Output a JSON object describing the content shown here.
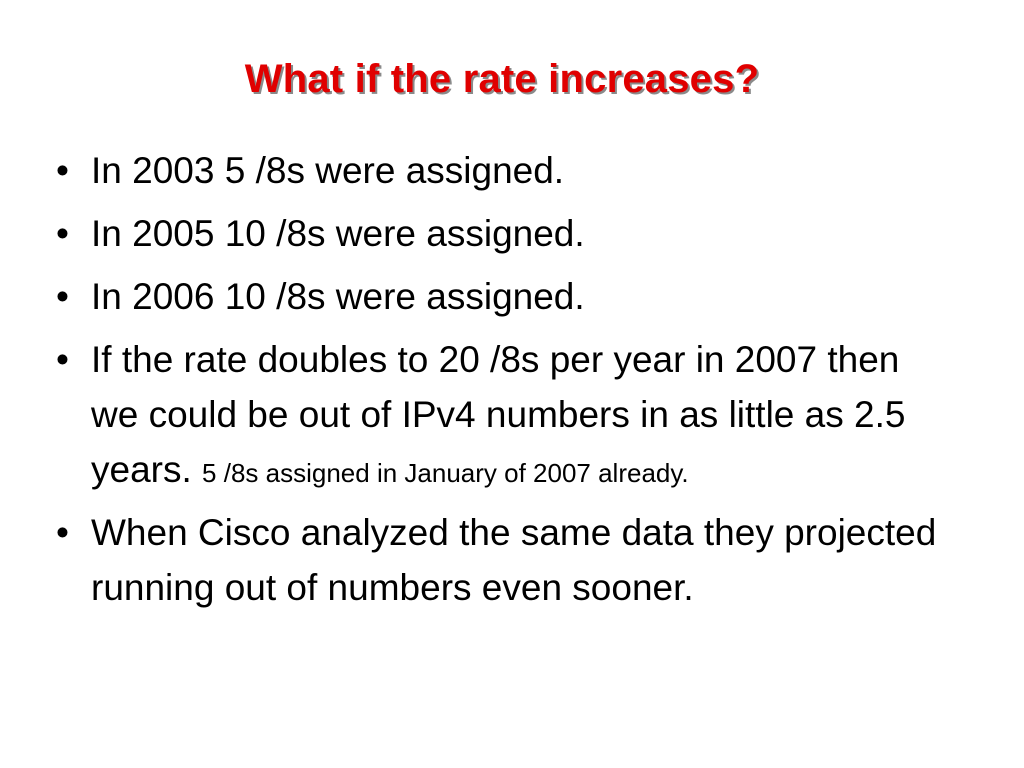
{
  "slide": {
    "title": "What if the rate increases?",
    "bullet_char": "•",
    "bullets": [
      {
        "text": "In 2003 5 /8s were assigned."
      },
      {
        "text": "In 2005 10 /8s were assigned."
      },
      {
        "text": "In 2006 10 /8s were assigned."
      },
      {
        "text": "If the rate doubles to 20 /8s per year in 2007 then we could be out of IPv4 numbers in as little as 2.5 years.",
        "note": "5 /8s assigned in January of 2007 already."
      },
      {
        "text": "When Cisco analyzed the same data they projected running out of numbers even sooner."
      }
    ],
    "colors": {
      "title": "#e00000",
      "title_shadow": "#8a8a8a",
      "body_text": "#000000",
      "background": "#ffffff"
    }
  }
}
